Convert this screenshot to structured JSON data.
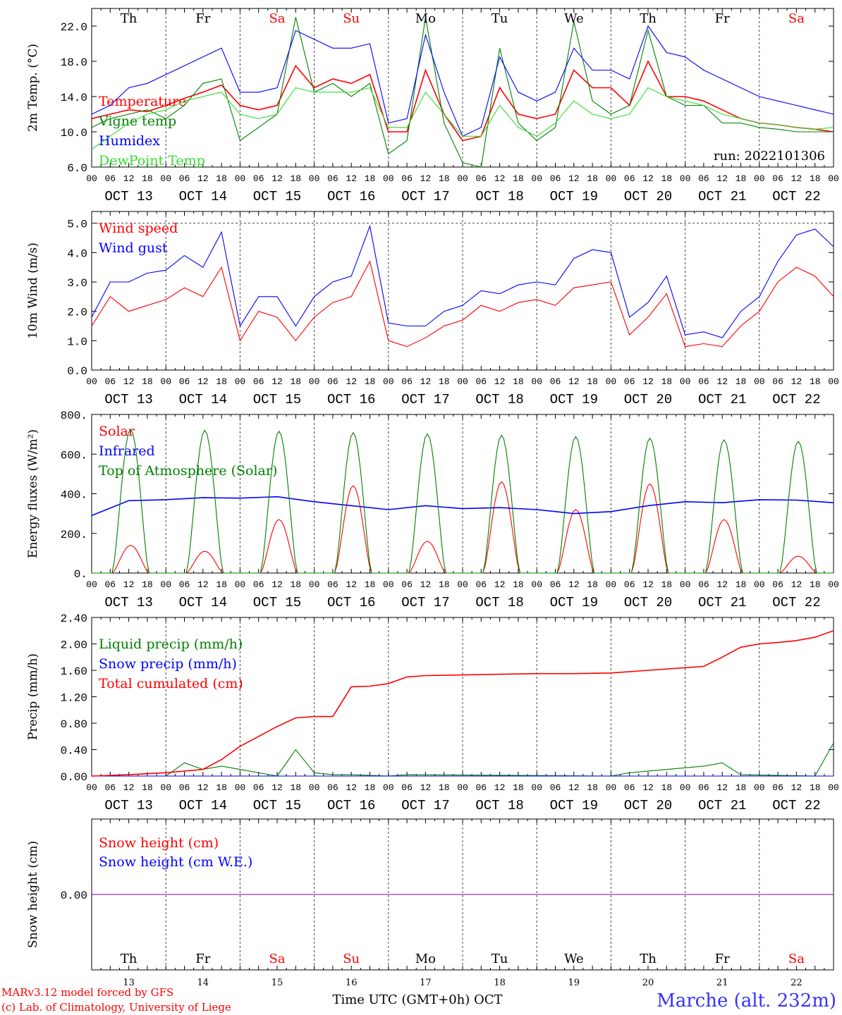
{
  "run_label": "run: 2022101306",
  "footer": {
    "model": "MARv3.12 model forced by GFS",
    "credit": "(c) Lab. of Climatology, University of Liege",
    "xaxis": "Time UTC (GMT+0h) OCT",
    "station": "Marche (alt. 232m)"
  },
  "days": [
    {
      "abbr": "Th",
      "weekend": false,
      "date": "OCT 13",
      "num": "13"
    },
    {
      "abbr": "Fr",
      "weekend": false,
      "date": "OCT 14",
      "num": "14"
    },
    {
      "abbr": "Sa",
      "weekend": true,
      "date": "OCT 15",
      "num": "15"
    },
    {
      "abbr": "Su",
      "weekend": true,
      "date": "OCT 16",
      "num": "16"
    },
    {
      "abbr": "Mo",
      "weekend": false,
      "date": "OCT 17",
      "num": "17"
    },
    {
      "abbr": "Tu",
      "weekend": false,
      "date": "OCT 18",
      "num": "18"
    },
    {
      "abbr": "We",
      "weekend": false,
      "date": "OCT 19",
      "num": "19"
    },
    {
      "abbr": "Th",
      "weekend": false,
      "date": "OCT 20",
      "num": "20"
    },
    {
      "abbr": "Fr",
      "weekend": false,
      "date": "OCT 21",
      "num": "21"
    },
    {
      "abbr": "Sa",
      "weekend": true,
      "date": "OCT 22",
      "num": "22"
    }
  ],
  "hour_labels": [
    "00",
    "06",
    "12",
    "18"
  ],
  "colors": {
    "red": "#ff0000",
    "blue": "#0000ff",
    "green": "#008000",
    "lightgreen": "#33dd33",
    "weekend": "#ff0000",
    "snow_line": "#8000a0"
  },
  "chart_data": [
    {
      "type": "line",
      "id": "temp",
      "ylabel": "2m Temp. (°C)",
      "ylim": [
        6,
        24
      ],
      "yticks": [
        "6.0",
        "10.0",
        "14.0",
        "18.0",
        "22.0"
      ],
      "series": [
        {
          "name": "Temperature",
          "color": "#ff0000",
          "x": [
            0,
            1,
            2,
            3,
            4,
            5,
            6,
            7,
            8,
            9,
            10,
            11,
            12,
            13,
            14,
            15,
            16,
            17,
            18,
            19,
            20,
            21,
            22,
            23,
            24,
            25,
            26,
            27,
            28,
            29,
            30,
            31,
            32,
            33,
            34,
            35,
            36,
            37,
            38,
            39,
            40
          ],
          "values": [
            11.5,
            12.0,
            12.5,
            12.3,
            13.0,
            13.8,
            14.5,
            15.3,
            13.0,
            12.5,
            13.0,
            17.5,
            15.0,
            16.0,
            15.5,
            16.5,
            10.0,
            10.0,
            17.0,
            12.0,
            9.0,
            9.5,
            15.0,
            12.0,
            11.5,
            12.0,
            17.0,
            15.0,
            15.0,
            13.0,
            18.0,
            14.0,
            14.0,
            13.5,
            12.5,
            11.5,
            11.0,
            10.8,
            10.5,
            10.3,
            10.0
          ]
        },
        {
          "name": "Vigne temp",
          "color": "#008000",
          "x": [
            0,
            1,
            2,
            3,
            4,
            5,
            6,
            7,
            8,
            9,
            10,
            11,
            12,
            13,
            14,
            15,
            16,
            17,
            18,
            19,
            20,
            21,
            22,
            23,
            24,
            25,
            26,
            27,
            28,
            29,
            30,
            31,
            32,
            33,
            34,
            35,
            36,
            37,
            38,
            39,
            40
          ],
          "values": [
            10.5,
            11.5,
            12.0,
            12.5,
            11.5,
            13.0,
            15.5,
            16.0,
            9.0,
            10.5,
            12.0,
            23.0,
            14.5,
            15.5,
            14.0,
            15.5,
            7.5,
            9.0,
            23.0,
            11.0,
            6.5,
            6.0,
            19.5,
            11.0,
            9.0,
            10.5,
            22.5,
            13.5,
            12.0,
            13.0,
            21.5,
            14.0,
            13.0,
            13.0,
            11.0,
            11.0,
            10.5,
            10.3,
            10.0,
            10.0,
            10.0
          ]
        },
        {
          "name": "Humidex",
          "color": "#0000ff",
          "x": [
            0,
            1,
            2,
            3,
            4,
            5,
            6,
            7,
            8,
            9,
            10,
            11,
            12,
            13,
            14,
            15,
            16,
            17,
            18,
            19,
            20,
            21,
            22,
            23,
            24,
            25,
            26,
            27,
            28,
            29,
            30,
            31,
            32,
            33,
            34,
            35,
            36,
            37,
            38,
            39,
            40
          ],
          "values": [
            12.0,
            13.0,
            15.0,
            15.5,
            16.5,
            17.5,
            18.5,
            19.5,
            14.5,
            14.5,
            15.0,
            21.5,
            20.5,
            19.5,
            19.5,
            20.0,
            11.0,
            11.5,
            21.0,
            14.5,
            9.5,
            10.5,
            18.5,
            14.5,
            13.5,
            14.5,
            19.5,
            17.0,
            17.0,
            16.0,
            22.0,
            19.0,
            18.5,
            17.0,
            16.0,
            15.0,
            14.0,
            13.5,
            13.0,
            12.5,
            12.0
          ]
        },
        {
          "name": "DewPoint Temp",
          "color": "#33dd33",
          "x": [
            0,
            1,
            2,
            3,
            4,
            5,
            6,
            7,
            8,
            9,
            10,
            11,
            12,
            13,
            14,
            15,
            16,
            17,
            18,
            19,
            20,
            21,
            22,
            23,
            24,
            25,
            26,
            27,
            28,
            29,
            30,
            31,
            32,
            33,
            34,
            35,
            36,
            37,
            38,
            39,
            40
          ],
          "values": [
            8.0,
            9.5,
            11.0,
            12.0,
            12.5,
            13.5,
            14.0,
            14.5,
            12.0,
            11.5,
            12.0,
            15.0,
            14.5,
            14.5,
            14.5,
            15.0,
            10.5,
            10.5,
            14.5,
            12.0,
            9.5,
            9.5,
            13.0,
            10.5,
            9.5,
            11.0,
            13.5,
            12.0,
            11.5,
            12.0,
            15.0,
            14.0,
            13.5,
            13.0,
            12.0,
            11.5,
            11.0,
            10.8,
            10.5,
            10.3,
            10.5
          ]
        }
      ]
    },
    {
      "type": "line",
      "id": "wind",
      "ylabel": "10m Wind (m/s)",
      "ylim": [
        0,
        5.4
      ],
      "dashed_ref": 5.0,
      "yticks": [
        "0.0",
        "1.0",
        "2.0",
        "3.0",
        "4.0",
        "5.0"
      ],
      "series": [
        {
          "name": "Wind speed",
          "color": "#ff0000",
          "x": [
            0,
            1,
            2,
            3,
            4,
            5,
            6,
            7,
            8,
            9,
            10,
            11,
            12,
            13,
            14,
            15,
            16,
            17,
            18,
            19,
            20,
            21,
            22,
            23,
            24,
            25,
            26,
            27,
            28,
            29,
            30,
            31,
            32,
            33,
            34,
            35,
            36,
            37,
            38,
            39,
            40
          ],
          "values": [
            1.5,
            2.5,
            2.0,
            2.2,
            2.4,
            2.8,
            2.5,
            3.5,
            1.0,
            2.0,
            1.8,
            1.0,
            1.8,
            2.3,
            2.5,
            3.7,
            1.0,
            0.8,
            1.1,
            1.5,
            1.7,
            2.2,
            2.0,
            2.3,
            2.4,
            2.2,
            2.8,
            2.9,
            3.0,
            1.2,
            1.8,
            2.6,
            0.8,
            0.9,
            0.8,
            1.5,
            2.0,
            3.0,
            3.5,
            3.2,
            2.5
          ]
        },
        {
          "name": "Wind gust",
          "color": "#0000ff",
          "x": [
            0,
            1,
            2,
            3,
            4,
            5,
            6,
            7,
            8,
            9,
            10,
            11,
            12,
            13,
            14,
            15,
            16,
            17,
            18,
            19,
            20,
            21,
            22,
            23,
            24,
            25,
            26,
            27,
            28,
            29,
            30,
            31,
            32,
            33,
            34,
            35,
            36,
            37,
            38,
            39,
            40
          ],
          "values": [
            1.8,
            3.0,
            3.0,
            3.3,
            3.4,
            3.9,
            3.5,
            4.7,
            1.5,
            2.5,
            2.5,
            1.5,
            2.5,
            3.0,
            3.2,
            4.9,
            1.6,
            1.5,
            1.5,
            2.0,
            2.2,
            2.7,
            2.6,
            2.9,
            3.0,
            2.9,
            3.8,
            4.1,
            4.0,
            1.8,
            2.3,
            3.2,
            1.2,
            1.3,
            1.1,
            2.0,
            2.5,
            3.7,
            4.6,
            4.8,
            4.2
          ]
        }
      ]
    },
    {
      "type": "line",
      "id": "energy",
      "ylabel": "Energy fluxes (W/m²)",
      "ylim": [
        0,
        800
      ],
      "yticks": [
        "0.",
        "200.",
        "400.",
        "600.",
        "800."
      ],
      "series": [
        {
          "name": "Solar",
          "color": "#ff0000",
          "daily_peak": [
            140,
            110,
            270,
            440,
            160,
            460,
            320,
            450,
            270,
            85
          ]
        },
        {
          "name": "Infrared",
          "color": "#0000ff",
          "x": [
            0,
            2,
            4,
            6,
            8,
            10,
            12,
            14,
            16,
            18,
            20,
            22,
            24,
            26,
            28,
            30,
            32,
            34,
            36,
            38,
            40
          ],
          "values": [
            290,
            365,
            370,
            380,
            378,
            385,
            360,
            340,
            320,
            340,
            325,
            330,
            320,
            300,
            310,
            340,
            360,
            355,
            370,
            368,
            355
          ]
        },
        {
          "name": "Top of Atmosphere (Solar)",
          "color": "#008000",
          "daily_peak": [
            725,
            720,
            715,
            708,
            702,
            695,
            688,
            680,
            672,
            665
          ]
        }
      ]
    },
    {
      "type": "line",
      "id": "precip",
      "ylabel": "Precip (mm/h)",
      "ylim": [
        0,
        2.4
      ],
      "yticks": [
        "0.00",
        "0.40",
        "0.80",
        "1.20",
        "1.60",
        "2.00",
        "2.40"
      ],
      "series": [
        {
          "name": "Liquid precip (mm/h)",
          "color": "#008000",
          "x": [
            0,
            4,
            5,
            6,
            7,
            8,
            10,
            11,
            12,
            13,
            14,
            16,
            17,
            28,
            29,
            33,
            34,
            35,
            39,
            40
          ],
          "values": [
            0,
            0,
            0.2,
            0.1,
            0.15,
            0.1,
            0,
            0.4,
            0.05,
            0.02,
            0.02,
            0,
            0.02,
            0,
            0.05,
            0.15,
            0.2,
            0.02,
            0,
            0.5
          ]
        },
        {
          "name": "Snow precip (mm/h)",
          "color": "#0000ff",
          "x": [
            0,
            40
          ],
          "values": [
            0,
            0
          ]
        },
        {
          "name": "Total cumulated (cm)",
          "color": "#ff0000",
          "x": [
            0,
            2,
            4,
            6,
            7,
            8,
            9,
            10,
            11,
            12,
            13,
            14,
            15,
            16,
            17,
            18,
            20,
            22,
            24,
            26,
            28,
            30,
            32,
            33,
            34,
            35,
            36,
            37,
            38,
            39,
            40
          ],
          "values": [
            0,
            0.02,
            0.05,
            0.1,
            0.25,
            0.45,
            0.6,
            0.75,
            0.88,
            0.9,
            0.9,
            1.35,
            1.36,
            1.4,
            1.5,
            1.52,
            1.53,
            1.54,
            1.55,
            1.55,
            1.56,
            1.6,
            1.64,
            1.66,
            1.8,
            1.95,
            2.0,
            2.02,
            2.05,
            2.1,
            2.2
          ]
        }
      ]
    },
    {
      "type": "line",
      "id": "snow",
      "ylabel": "Snow height (cm)",
      "ylim": [
        -1,
        1
      ],
      "yticks": [
        "0.00"
      ],
      "series": [
        {
          "name": "Snow height (cm)",
          "color": "#ff0000",
          "x": [
            0,
            40
          ],
          "values": [
            0,
            0
          ]
        },
        {
          "name": "Snow height (cm W.E.)",
          "color": "#0000ff",
          "x": [
            0,
            40
          ],
          "values": [
            0,
            0
          ]
        }
      ]
    }
  ]
}
